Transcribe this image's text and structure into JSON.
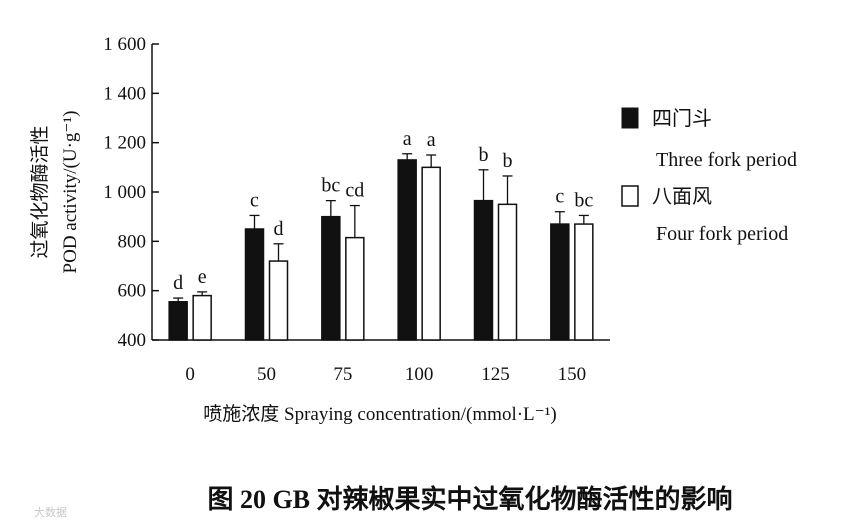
{
  "chart_data": {
    "type": "bar",
    "categories": [
      "0",
      "50",
      "75",
      "100",
      "125",
      "150"
    ],
    "series": [
      {
        "name": "四门斗",
        "name_en": "Three fork period",
        "color": "#111111",
        "values": [
          555,
          850,
          900,
          1130,
          965,
          870
        ],
        "errors": [
          15,
          55,
          65,
          25,
          125,
          50
        ],
        "significance": [
          "d",
          "c",
          "bc",
          "a",
          "b",
          "c"
        ]
      },
      {
        "name": "八面风",
        "name_en": "Four fork period",
        "color": "#ffffff",
        "values": [
          580,
          720,
          815,
          1100,
          950,
          870
        ],
        "errors": [
          15,
          70,
          130,
          50,
          115,
          35
        ],
        "significance": [
          "e",
          "d",
          "cd",
          "a",
          "b",
          "bc"
        ]
      }
    ],
    "ylim": [
      400,
      1600
    ],
    "yticks": [
      "400",
      "600",
      "800",
      "1 000",
      "1 200",
      "1 400",
      "1 600"
    ],
    "ylabel_cn": "过氧化物酶活性",
    "ylabel_en": "POD activity/(U·g⁻¹)",
    "xlabel": "喷施浓度 Spraying concentration/(mmol·L⁻¹)",
    "legend_position": "right",
    "grid": false
  },
  "caption": "图 20    GB 对辣椒果实中过氧化物酶活性的影响",
  "watermark": "大数据"
}
